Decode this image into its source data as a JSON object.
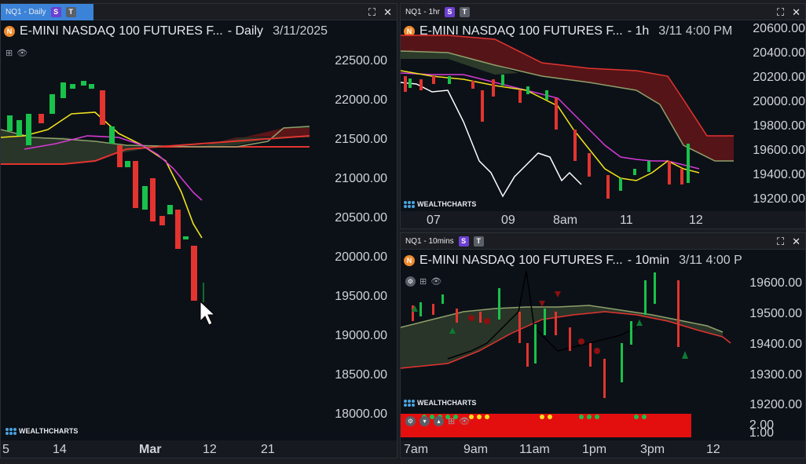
{
  "panels": {
    "daily": {
      "tab_label": "NQ1 - Daily",
      "title": "E-MINI NASDAQ 100 FUTURES F...",
      "interval": "- Daily",
      "date": "3/11/2025",
      "y_ticks": [
        "22500.00",
        "22000.00",
        "21500.00",
        "21000.00",
        "20500.00",
        "20000.00",
        "19500.00",
        "19000.00",
        "18500.00",
        "18000.00"
      ],
      "x_ticks": [
        "5",
        "14",
        "Mar",
        "12",
        "21"
      ],
      "watermark": "WEALTHCHARTS"
    },
    "hourly": {
      "tab_label": "NQ1 - 1hr",
      "title": "E-MINI NASDAQ 100 FUTURES F...",
      "interval": "- 1h",
      "date": "3/11 4:00 PM",
      "y_ticks": [
        "20600.00",
        "20400.00",
        "20200.00",
        "20000.00",
        "19800.00",
        "19600.00",
        "19400.00",
        "19200.00"
      ],
      "x_ticks": [
        "07",
        "09",
        "8am",
        "11",
        "12"
      ],
      "watermark": "WEALTHCHARTS"
    },
    "tenmin": {
      "tab_label": "NQ1 - 10mins",
      "title": "E-MINI NASDAQ 100 FUTURES F...",
      "interval": "- 10min",
      "date": "3/11 4:00 P",
      "y_ticks": [
        "19600.00",
        "19500.00",
        "19400.00",
        "19300.00",
        "19200.00"
      ],
      "sub_y_ticks": [
        "2.00",
        "1.00"
      ],
      "x_ticks": [
        "7am",
        "9am",
        "11am",
        "1pm",
        "3pm",
        "12"
      ],
      "watermark": "WEALTHCHARTS"
    }
  },
  "badges": {
    "s": "S",
    "t": "T"
  },
  "symbol_badge": "N",
  "colors": {
    "up": "#19c24a",
    "down": "#e3342f",
    "cloud_bear": "#5a1518",
    "cloud_bull": "#2c3a2a",
    "ma_yellow": "#f2e21b",
    "ma_magenta": "#d63ad6",
    "line_white": "#ffffff",
    "tab_active": "#3b83d8"
  },
  "icons": [
    "maximize-icon",
    "close-icon",
    "add-icon",
    "eye-icon",
    "symbol-icon",
    "cursor-icon"
  ]
}
